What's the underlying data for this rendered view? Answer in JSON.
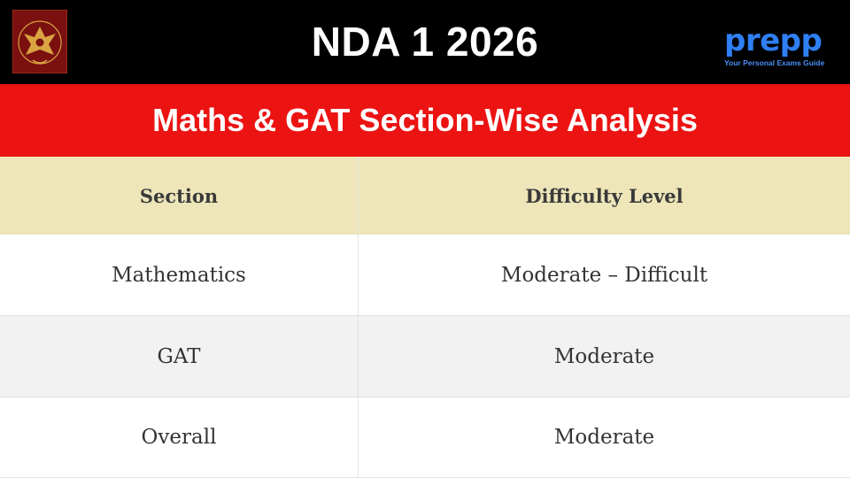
{
  "header": {
    "title": "NDA 1 2026",
    "emblem_icon": "national-defence-academy-emblem",
    "brand": {
      "name": "Prepp",
      "tagline": "Your Personal Exams Guide"
    }
  },
  "subheader": {
    "title": "Maths & GAT Section-Wise Analysis"
  },
  "table": {
    "columns": [
      "Section",
      "Difficulty Level"
    ],
    "rows": [
      [
        "Mathematics",
        "Moderate – Difficult"
      ],
      [
        "GAT",
        "Moderate"
      ],
      [
        "Overall",
        "Moderate"
      ]
    ]
  },
  "colors": {
    "top_bar": "#000000",
    "sub_bar": "#ec1313",
    "header_row": "#eee6b9",
    "brand_blue": "#2f7ff5"
  }
}
